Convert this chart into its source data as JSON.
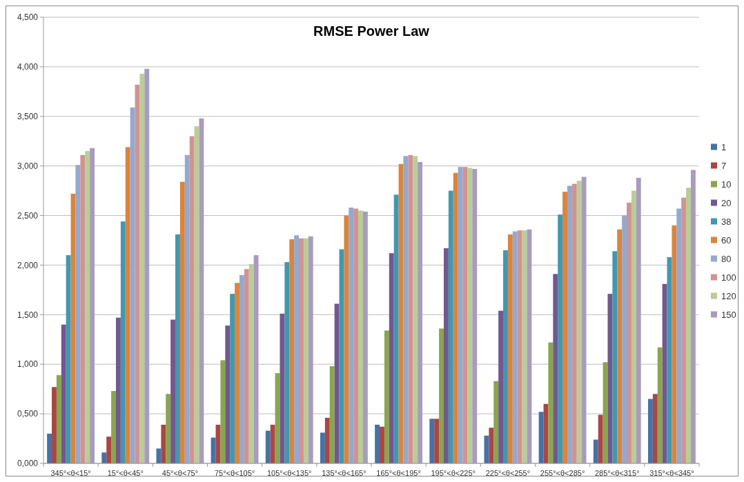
{
  "chart_data": {
    "type": "bar",
    "title": "RMSE Power Law",
    "categories": [
      "345°<θ<15°",
      "15°<θ<45°",
      "45°<θ<75°",
      "75°<θ<105°",
      "105°<θ<135°",
      "135°<θ<165°",
      "165°<θ<195°",
      "195°<θ<225°",
      "225°<θ<255°",
      "255°<θ<285°",
      "285°<θ<315°",
      "315°<θ<345°"
    ],
    "series": [
      {
        "name": "1",
        "color": "#4572a7",
        "values": [
          0.3,
          0.11,
          0.15,
          0.26,
          0.33,
          0.31,
          0.39,
          0.45,
          0.28,
          0.52,
          0.24,
          0.65
        ]
      },
      {
        "name": "7",
        "color": "#aa4643",
        "values": [
          0.77,
          0.27,
          0.39,
          0.39,
          0.39,
          0.46,
          0.37,
          0.45,
          0.36,
          0.6,
          0.49,
          0.7
        ]
      },
      {
        "name": "10",
        "color": "#89a54e",
        "values": [
          0.89,
          0.73,
          0.7,
          1.04,
          0.91,
          0.98,
          1.34,
          1.36,
          0.83,
          1.22,
          1.02,
          1.17
        ]
      },
      {
        "name": "20",
        "color": "#71588f",
        "values": [
          1.4,
          1.47,
          1.45,
          1.39,
          1.51,
          1.61,
          2.12,
          2.17,
          1.54,
          1.91,
          1.71,
          1.81
        ]
      },
      {
        "name": "38",
        "color": "#4198af",
        "values": [
          2.1,
          2.44,
          2.31,
          1.71,
          2.03,
          2.16,
          2.71,
          2.75,
          2.15,
          2.51,
          2.14,
          2.08
        ]
      },
      {
        "name": "60",
        "color": "#db843d",
        "values": [
          2.72,
          3.19,
          2.84,
          1.82,
          2.26,
          2.5,
          3.02,
          2.93,
          2.31,
          2.74,
          2.36,
          2.4
        ]
      },
      {
        "name": "80",
        "color": "#93a9cf",
        "values": [
          3.01,
          3.59,
          3.11,
          1.9,
          2.3,
          2.58,
          3.1,
          2.99,
          2.34,
          2.8,
          2.5,
          2.57
        ]
      },
      {
        "name": "100",
        "color": "#d19392",
        "values": [
          3.11,
          3.82,
          3.3,
          1.96,
          2.27,
          2.57,
          3.11,
          2.99,
          2.35,
          2.82,
          2.63,
          2.68
        ]
      },
      {
        "name": "120",
        "color": "#b9cd96",
        "values": [
          3.15,
          3.93,
          3.4,
          2.01,
          2.27,
          2.55,
          3.1,
          2.98,
          2.35,
          2.85,
          2.75,
          2.78
        ]
      },
      {
        "name": "150",
        "color": "#a99bbd",
        "values": [
          3.18,
          3.98,
          3.48,
          2.1,
          2.29,
          2.54,
          3.04,
          2.97,
          2.36,
          2.89,
          2.88,
          2.96
        ]
      }
    ],
    "ylim": [
      0,
      4.5
    ],
    "yticks": [
      {
        "value": 0,
        "label": "0,000"
      },
      {
        "value": 0.5,
        "label": "0,500"
      },
      {
        "value": 1,
        "label": "1,000"
      },
      {
        "value": 1.5,
        "label": "1,500"
      },
      {
        "value": 2,
        "label": "2,000"
      },
      {
        "value": 2.5,
        "label": "2,500"
      },
      {
        "value": 3,
        "label": "3,000"
      },
      {
        "value": 3.5,
        "label": "3,500"
      },
      {
        "value": 4,
        "label": "4,000"
      },
      {
        "value": 4.5,
        "label": "4,500"
      }
    ],
    "grid": "y",
    "legend": "right"
  }
}
